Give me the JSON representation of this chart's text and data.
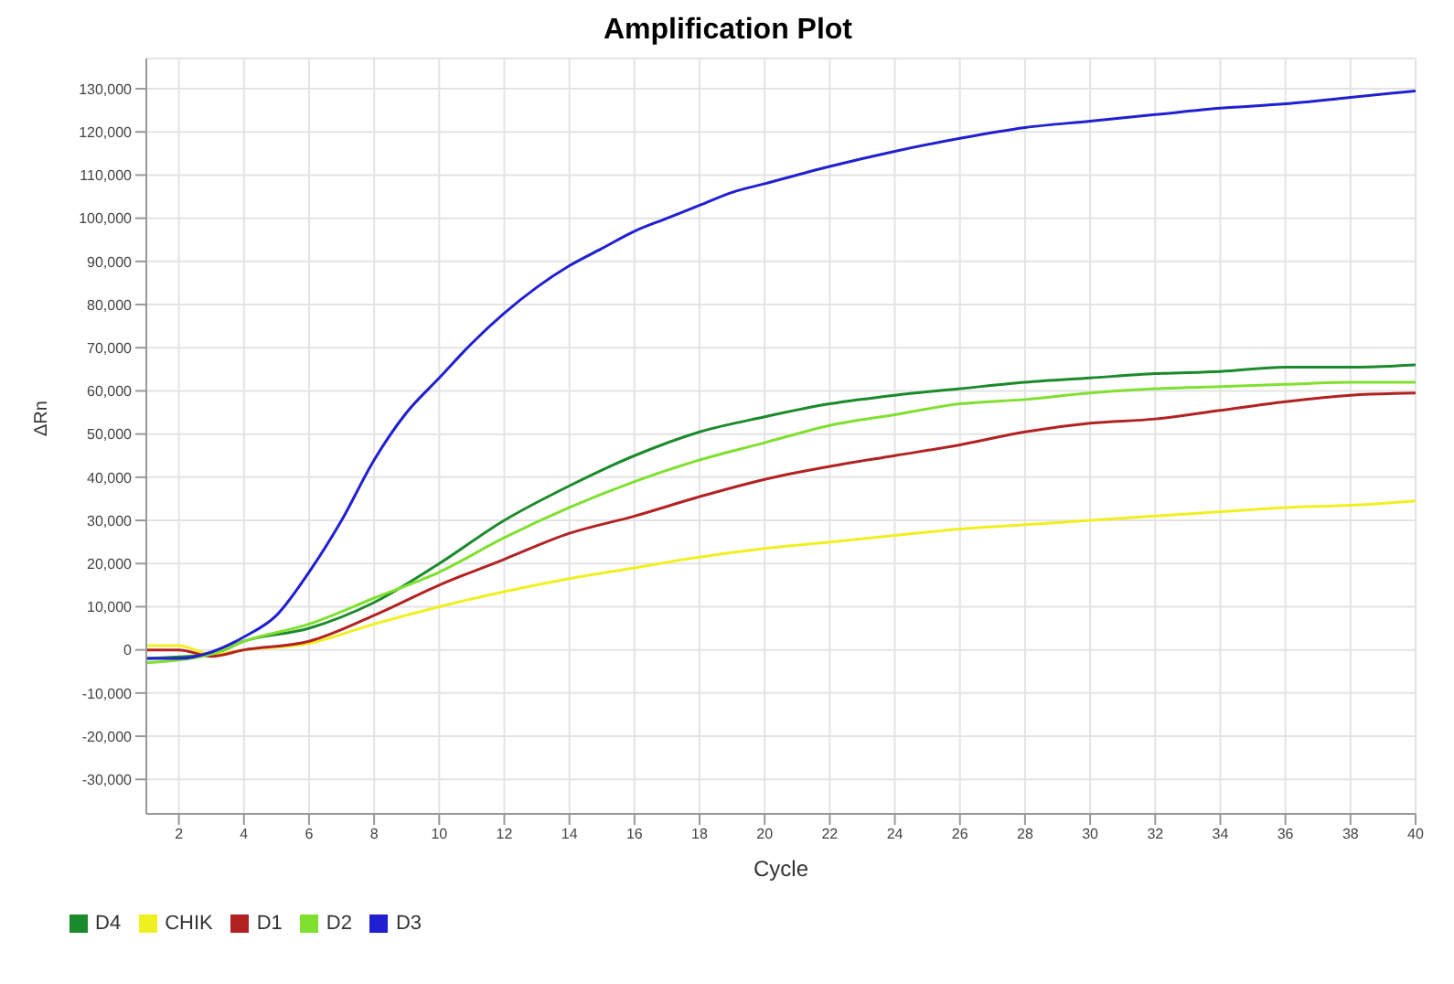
{
  "chart_data": {
    "type": "line",
    "title": "Amplification Plot",
    "xlabel": "Cycle",
    "ylabel": "ΔRn",
    "xlim": [
      1,
      40
    ],
    "xticks": [
      2,
      4,
      6,
      8,
      10,
      12,
      14,
      16,
      18,
      20,
      22,
      24,
      26,
      28,
      30,
      32,
      34,
      36,
      38,
      40
    ],
    "ylim": [
      -38000,
      137000
    ],
    "yticks": [
      {
        "value": -30000,
        "label": "-30,000"
      },
      {
        "value": -20000,
        "label": "-20,000"
      },
      {
        "value": -10000,
        "label": "-10,000"
      },
      0,
      {
        "value": 10000,
        "label": "10,000"
      },
      {
        "value": 20000,
        "label": "20,000"
      },
      {
        "value": 30000,
        "label": "30,000"
      },
      {
        "value": 40000,
        "label": "40,000"
      },
      {
        "value": 50000,
        "label": "50,000"
      },
      {
        "value": 60000,
        "label": "60,000"
      },
      {
        "value": 70000,
        "label": "70,000"
      },
      {
        "value": 80000,
        "label": "80,000"
      },
      {
        "value": 90000,
        "label": "90,000"
      },
      {
        "value": 100000,
        "label": "100,000"
      },
      {
        "value": 110000,
        "label": "110,000"
      },
      {
        "value": 120000,
        "label": "120,000"
      },
      {
        "value": 130000,
        "label": "130,000"
      }
    ],
    "grid": true,
    "legend": "bottom left",
    "marker": "none",
    "line_style": "solid",
    "series": [
      {
        "name": "D4",
        "color": "#1a8a2a",
        "x": [
          1,
          3,
          4,
          6,
          8,
          10,
          12,
          14,
          16,
          18,
          20,
          22,
          24,
          26,
          28,
          30,
          32,
          34,
          36,
          38,
          40
        ],
        "values": [
          -2000,
          -1000,
          2000,
          5000,
          11000,
          20000,
          30000,
          38000,
          45000,
          50500,
          54000,
          57000,
          59000,
          60500,
          62000,
          63000,
          64000,
          64500,
          65500,
          65500,
          66000
        ]
      },
      {
        "name": "CHIK",
        "color": "#f0f020",
        "x": [
          1,
          2,
          3,
          4,
          6,
          8,
          10,
          12,
          14,
          16,
          18,
          20,
          22,
          24,
          26,
          28,
          30,
          32,
          34,
          36,
          38,
          40
        ],
        "values": [
          1000,
          1000,
          -1000,
          0,
          1500,
          6000,
          10000,
          13500,
          16500,
          19000,
          21500,
          23500,
          25000,
          26500,
          28000,
          29000,
          30000,
          31000,
          32000,
          33000,
          33500,
          34500
        ]
      },
      {
        "name": "D1",
        "color": "#b22222",
        "x": [
          1,
          2,
          3,
          4,
          6,
          8,
          10,
          12,
          14,
          16,
          18,
          20,
          22,
          24,
          26,
          28,
          30,
          32,
          34,
          36,
          38,
          40
        ],
        "values": [
          0,
          0,
          -1500,
          0,
          2000,
          8000,
          15000,
          21000,
          27000,
          31000,
          35500,
          39500,
          42500,
          45000,
          47500,
          50500,
          52500,
          53500,
          55500,
          57500,
          59000,
          59500
        ]
      },
      {
        "name": "D2",
        "color": "#80e030",
        "x": [
          1,
          3,
          4,
          6,
          8,
          10,
          12,
          14,
          16,
          18,
          20,
          22,
          24,
          26,
          28,
          30,
          32,
          34,
          36,
          38,
          40
        ],
        "values": [
          -3000,
          -1000,
          2000,
          6000,
          12000,
          18000,
          26000,
          33000,
          39000,
          44000,
          48000,
          52000,
          54500,
          57000,
          58000,
          59500,
          60500,
          61000,
          61500,
          62000,
          62000
        ]
      },
      {
        "name": "D3",
        "color": "#2020d0",
        "x": [
          1,
          2,
          3,
          4,
          5,
          6,
          7,
          8,
          9,
          10,
          11,
          12,
          13,
          14,
          15,
          16,
          17,
          18,
          19,
          20,
          22,
          24,
          26,
          28,
          30,
          32,
          34,
          36,
          38,
          40
        ],
        "values": [
          -2000,
          -2000,
          -500,
          3000,
          8000,
          18000,
          30000,
          44000,
          55000,
          63000,
          71000,
          78000,
          84000,
          89000,
          93000,
          97000,
          100000,
          103000,
          106000,
          108000,
          112000,
          115500,
          118500,
          121000,
          122500,
          124000,
          125500,
          126500,
          128000,
          129500
        ]
      }
    ]
  }
}
